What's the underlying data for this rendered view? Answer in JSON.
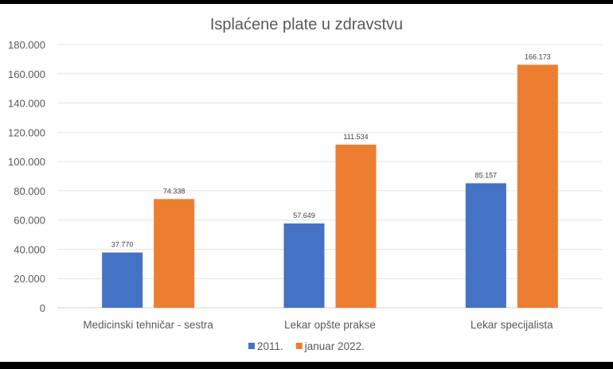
{
  "chart_data": {
    "type": "bar",
    "title": "Isplaćene plate u zdravstvu",
    "categories": [
      "Medicinski tehničar - sestra",
      "Lekar opšte prakse",
      "Lekar specijalista"
    ],
    "series": [
      {
        "name": "2011.",
        "values": [
          37770,
          57649,
          85157
        ],
        "labels": [
          "37.770",
          "57.649",
          "85.157"
        ],
        "color": "#4472C4"
      },
      {
        "name": "januar 2022.",
        "values": [
          74338,
          111534,
          166173
        ],
        "labels": [
          "74.338",
          "111.534",
          "166.173"
        ],
        "color": "#ED7D31"
      }
    ],
    "ylim": [
      0,
      180000
    ],
    "yticks": [
      0,
      20000,
      40000,
      60000,
      80000,
      100000,
      120000,
      140000,
      160000,
      180000
    ],
    "ytick_labels": [
      "0",
      "20.000",
      "40.000",
      "60.000",
      "80.000",
      "100.000",
      "120.000",
      "140.000",
      "160.000",
      "180.000"
    ],
    "grid": true,
    "legend": "bottom"
  }
}
